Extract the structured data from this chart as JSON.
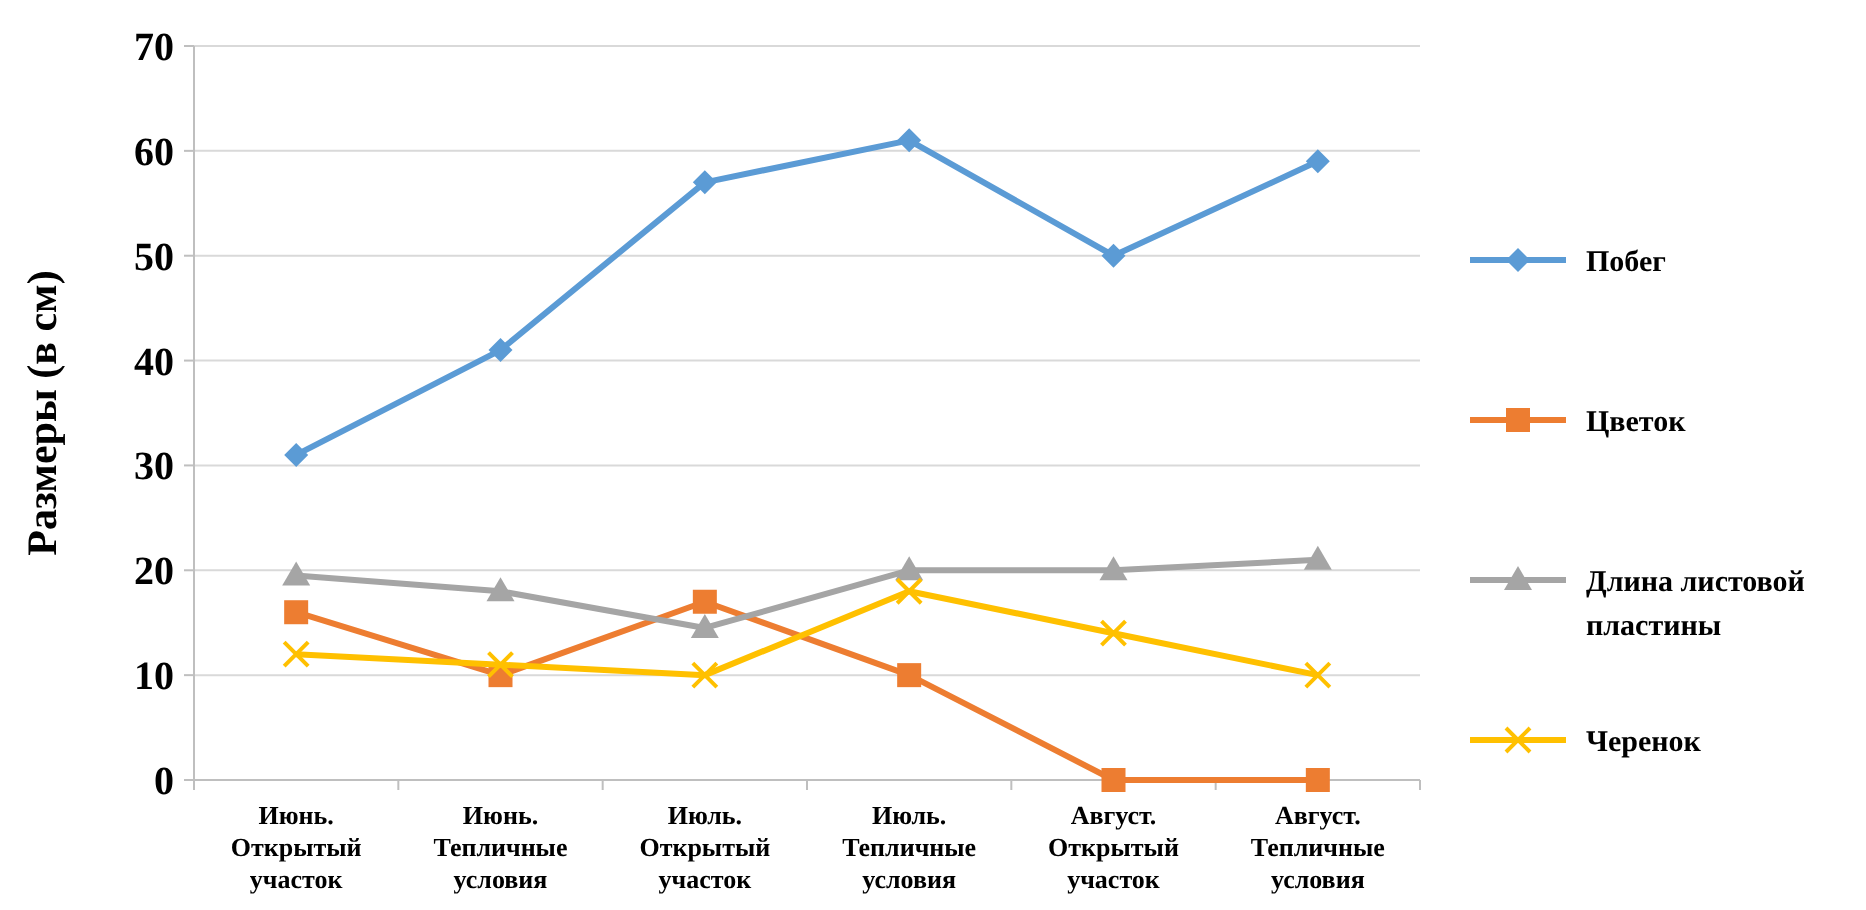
{
  "chart_data": {
    "type": "line",
    "ylabel": "Размеры (в см)",
    "categories": [
      "Июнь. Открытый участок",
      "Июнь. Тепличные условия",
      "Июль. Открытый участок",
      "Июль. Тепличные условия",
      "Август. Открытый участок",
      "Август. Тепличные условия"
    ],
    "series": [
      {
        "name": "Побег",
        "color": "#5b9bd5",
        "marker": "diamond",
        "values": [
          31,
          41,
          57,
          61,
          50,
          59
        ]
      },
      {
        "name": "Цветок",
        "color": "#ed7d31",
        "marker": "square",
        "values": [
          16,
          10,
          17,
          10,
          0,
          0
        ]
      },
      {
        "name": "Длина листовой пластины",
        "color": "#a5a5a5",
        "marker": "triangle",
        "values": [
          19.5,
          18,
          14.5,
          20,
          20,
          21
        ]
      },
      {
        "name": "Черенок",
        "color": "#ffc000",
        "marker": "cross",
        "values": [
          12,
          11,
          10,
          18,
          14,
          10
        ]
      }
    ],
    "ylim": [
      0,
      70
    ],
    "yticks": [
      0,
      10,
      20,
      30,
      40,
      50,
      60,
      70
    ],
    "grid": "y",
    "legend": "right"
  }
}
